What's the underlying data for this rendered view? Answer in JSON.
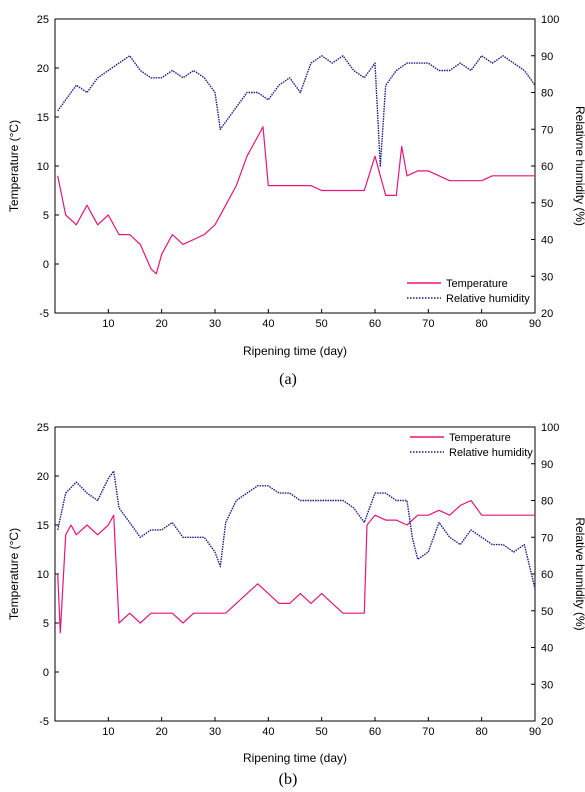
{
  "colors": {
    "temperature": "#e8157a",
    "humidity": "#1a1a8c",
    "axis": "#000000"
  },
  "chart_data": [
    {
      "type": "line",
      "caption": "(a)",
      "xlabel": "Ripening time (day)",
      "ylabel": "Temperature (°C)",
      "y2label": "Relativne humidity (%)",
      "xlim": [
        0,
        90
      ],
      "ylim": [
        -5,
        25
      ],
      "y2lim": [
        20,
        100
      ],
      "xticks": [
        10,
        20,
        30,
        40,
        50,
        60,
        70,
        80,
        90
      ],
      "yticks": [
        -5,
        0,
        5,
        10,
        15,
        20,
        25
      ],
      "y2ticks": [
        20,
        30,
        40,
        50,
        60,
        70,
        80,
        90,
        100
      ],
      "legend_position": "bottom-right",
      "series": [
        {
          "name": "Temperature",
          "axis": "left",
          "style": "solid",
          "x": [
            0.5,
            2,
            4,
            6,
            8,
            10,
            12,
            14,
            16,
            18,
            19,
            20,
            22,
            24,
            26,
            28,
            30,
            32,
            34,
            36,
            38,
            39,
            40,
            42,
            44,
            46,
            48,
            50,
            52,
            54,
            56,
            58,
            60,
            61,
            62,
            64,
            65,
            66,
            68,
            70,
            72,
            74,
            76,
            78,
            80,
            82,
            84,
            86,
            88,
            90
          ],
          "y": [
            9,
            5,
            4,
            6,
            4,
            5,
            3,
            3,
            2,
            -0.5,
            -1,
            1,
            3,
            2,
            2.5,
            3,
            4,
            6,
            8,
            11,
            13,
            14,
            8,
            8,
            8,
            8,
            8,
            7.5,
            7.5,
            7.5,
            7.5,
            7.5,
            11,
            9,
            7,
            7,
            12,
            9,
            9.5,
            9.5,
            9,
            8.5,
            8.5,
            8.5,
            8.5,
            9,
            9,
            9,
            9,
            9
          ]
        },
        {
          "name": "Relative humidity",
          "axis": "right",
          "style": "dotted",
          "x": [
            0.5,
            2,
            4,
            6,
            8,
            10,
            12,
            14,
            16,
            18,
            20,
            22,
            24,
            26,
            28,
            30,
            31,
            32,
            34,
            36,
            38,
            40,
            42,
            44,
            46,
            48,
            50,
            52,
            54,
            56,
            58,
            60,
            61,
            62,
            64,
            66,
            68,
            70,
            72,
            74,
            76,
            78,
            80,
            82,
            84,
            86,
            88,
            90
          ],
          "y": [
            75,
            78,
            82,
            80,
            84,
            86,
            88,
            90,
            86,
            84,
            84,
            86,
            84,
            86,
            84,
            80,
            70,
            72,
            76,
            80,
            80,
            78,
            82,
            84,
            80,
            88,
            90,
            88,
            90,
            86,
            84,
            88,
            60,
            82,
            86,
            88,
            88,
            88,
            86,
            86,
            88,
            86,
            90,
            88,
            90,
            88,
            86,
            82
          ]
        }
      ]
    },
    {
      "type": "line",
      "caption": "(b)",
      "xlabel": "Ripening time (day)",
      "ylabel": "Temperature (°C)",
      "y2label": "Relative humidity (%)",
      "xlim": [
        0,
        90
      ],
      "ylim": [
        -5,
        25
      ],
      "y2lim": [
        20,
        100
      ],
      "xticks": [
        10,
        20,
        30,
        40,
        50,
        60,
        70,
        80,
        90
      ],
      "yticks": [
        -5,
        0,
        5,
        10,
        15,
        20,
        25
      ],
      "y2ticks": [
        20,
        30,
        40,
        50,
        60,
        70,
        80,
        90,
        100
      ],
      "legend_position": "top-right",
      "series": [
        {
          "name": "Temperature",
          "axis": "left",
          "style": "solid",
          "x": [
            0.5,
            1,
            2,
            3,
            4,
            6,
            8,
            10,
            11,
            12,
            14,
            16,
            18,
            20,
            22,
            24,
            26,
            28,
            30,
            32,
            34,
            36,
            38,
            40,
            42,
            44,
            46,
            48,
            50,
            52,
            54,
            56,
            58,
            58.5,
            60,
            62,
            64,
            66,
            68,
            70,
            72,
            74,
            76,
            78,
            80,
            82,
            84,
            86,
            88,
            90
          ],
          "y": [
            10,
            4,
            14,
            15,
            14,
            15,
            14,
            15,
            16,
            5,
            6,
            5,
            6,
            6,
            6,
            5,
            6,
            6,
            6,
            6,
            7,
            8,
            9,
            8,
            7,
            7,
            8,
            7,
            8,
            7,
            6,
            6,
            6,
            15,
            16,
            15.5,
            15.5,
            15,
            16,
            16,
            16.5,
            16,
            17,
            17.5,
            16,
            16,
            16,
            16,
            16,
            16
          ]
        },
        {
          "name": "Relative humidity",
          "axis": "right",
          "style": "dotted",
          "x": [
            0.5,
            2,
            4,
            6,
            8,
            10,
            11,
            12,
            14,
            16,
            18,
            20,
            22,
            24,
            26,
            28,
            30,
            31,
            32,
            34,
            36,
            38,
            40,
            42,
            44,
            46,
            48,
            50,
            52,
            54,
            56,
            58,
            60,
            62,
            64,
            66,
            67,
            68,
            70,
            72,
            74,
            76,
            78,
            80,
            82,
            84,
            86,
            88,
            90
          ],
          "y": [
            72,
            82,
            85,
            82,
            80,
            86,
            88,
            78,
            74,
            70,
            72,
            72,
            74,
            70,
            70,
            70,
            66,
            62,
            74,
            80,
            82,
            84,
            84,
            82,
            82,
            80,
            80,
            80,
            80,
            80,
            78,
            74,
            82,
            82,
            80,
            80,
            70,
            64,
            66,
            74,
            70,
            68,
            72,
            70,
            68,
            68,
            66,
            68,
            56
          ]
        }
      ]
    }
  ]
}
